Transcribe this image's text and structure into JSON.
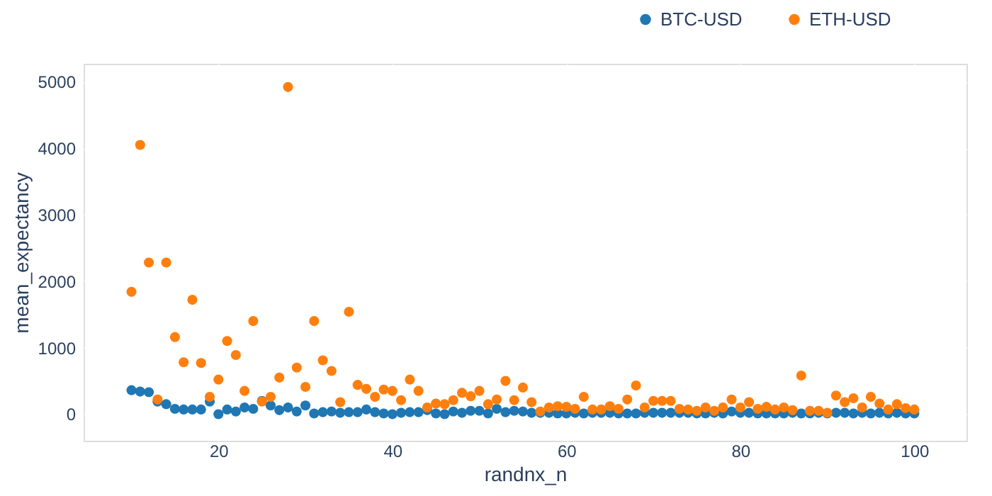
{
  "chart_data": {
    "type": "scatter",
    "xlabel": "randnx_n",
    "ylabel": "mean_expectancy",
    "x": [
      10,
      11,
      12,
      13,
      14,
      15,
      16,
      17,
      18,
      19,
      20,
      21,
      22,
      23,
      24,
      25,
      26,
      27,
      28,
      29,
      30,
      31,
      32,
      33,
      34,
      35,
      36,
      37,
      38,
      39,
      40,
      41,
      42,
      43,
      44,
      45,
      46,
      47,
      48,
      49,
      50,
      51,
      52,
      53,
      54,
      55,
      56,
      57,
      58,
      59,
      60,
      61,
      62,
      63,
      64,
      65,
      66,
      67,
      68,
      69,
      70,
      71,
      72,
      73,
      74,
      75,
      76,
      77,
      78,
      79,
      80,
      81,
      82,
      83,
      84,
      85,
      86,
      87,
      88,
      89,
      90,
      91,
      92,
      93,
      94,
      95,
      96,
      97,
      98,
      99,
      100
    ],
    "series": [
      {
        "name": "BTC-USD",
        "color": "#1f77b4",
        "values": [
          360,
          340,
          330,
          190,
          150,
          80,
          70,
          70,
          70,
          190,
          0,
          70,
          40,
          100,
          80,
          200,
          130,
          60,
          100,
          40,
          130,
          10,
          30,
          40,
          20,
          30,
          30,
          70,
          30,
          10,
          0,
          20,
          30,
          30,
          60,
          10,
          0,
          40,
          20,
          50,
          50,
          10,
          80,
          30,
          50,
          40,
          20,
          20,
          20,
          10,
          10,
          20,
          10,
          20,
          20,
          20,
          10,
          10,
          10,
          20,
          20,
          20,
          20,
          20,
          20,
          10,
          10,
          20,
          10,
          40,
          20,
          20,
          10,
          10,
          10,
          10,
          20,
          10,
          10,
          20,
          10,
          20,
          20,
          10,
          20,
          10,
          20,
          10,
          20,
          10,
          10
        ]
      },
      {
        "name": "ETH-USD",
        "color": "#ff7f0e",
        "values": [
          1840,
          4050,
          2280,
          220,
          2280,
          1160,
          780,
          1720,
          770,
          260,
          520,
          1100,
          890,
          350,
          1400,
          190,
          260,
          550,
          4920,
          700,
          410,
          1400,
          810,
          650,
          180,
          1540,
          440,
          380,
          260,
          370,
          350,
          210,
          520,
          350,
          100,
          160,
          150,
          210,
          320,
          270,
          350,
          150,
          220,
          500,
          210,
          400,
          180,
          40,
          100,
          120,
          110,
          80,
          260,
          70,
          70,
          120,
          80,
          220,
          430,
          100,
          200,
          200,
          200,
          80,
          70,
          50,
          100,
          50,
          100,
          220,
          100,
          180,
          80,
          110,
          70,
          100,
          60,
          580,
          50,
          50,
          20,
          280,
          180,
          240,
          100,
          260,
          160,
          70,
          150,
          90,
          70
        ]
      }
    ],
    "xlim": [
      4.5,
      106
    ],
    "ylim": [
      -400,
      5270
    ],
    "xticks": [
      20,
      40,
      60,
      80,
      100
    ],
    "yticks": [
      0,
      1000,
      2000,
      3000,
      4000,
      5000
    ],
    "grid": true,
    "legend": "top right",
    "marker": "circle"
  }
}
